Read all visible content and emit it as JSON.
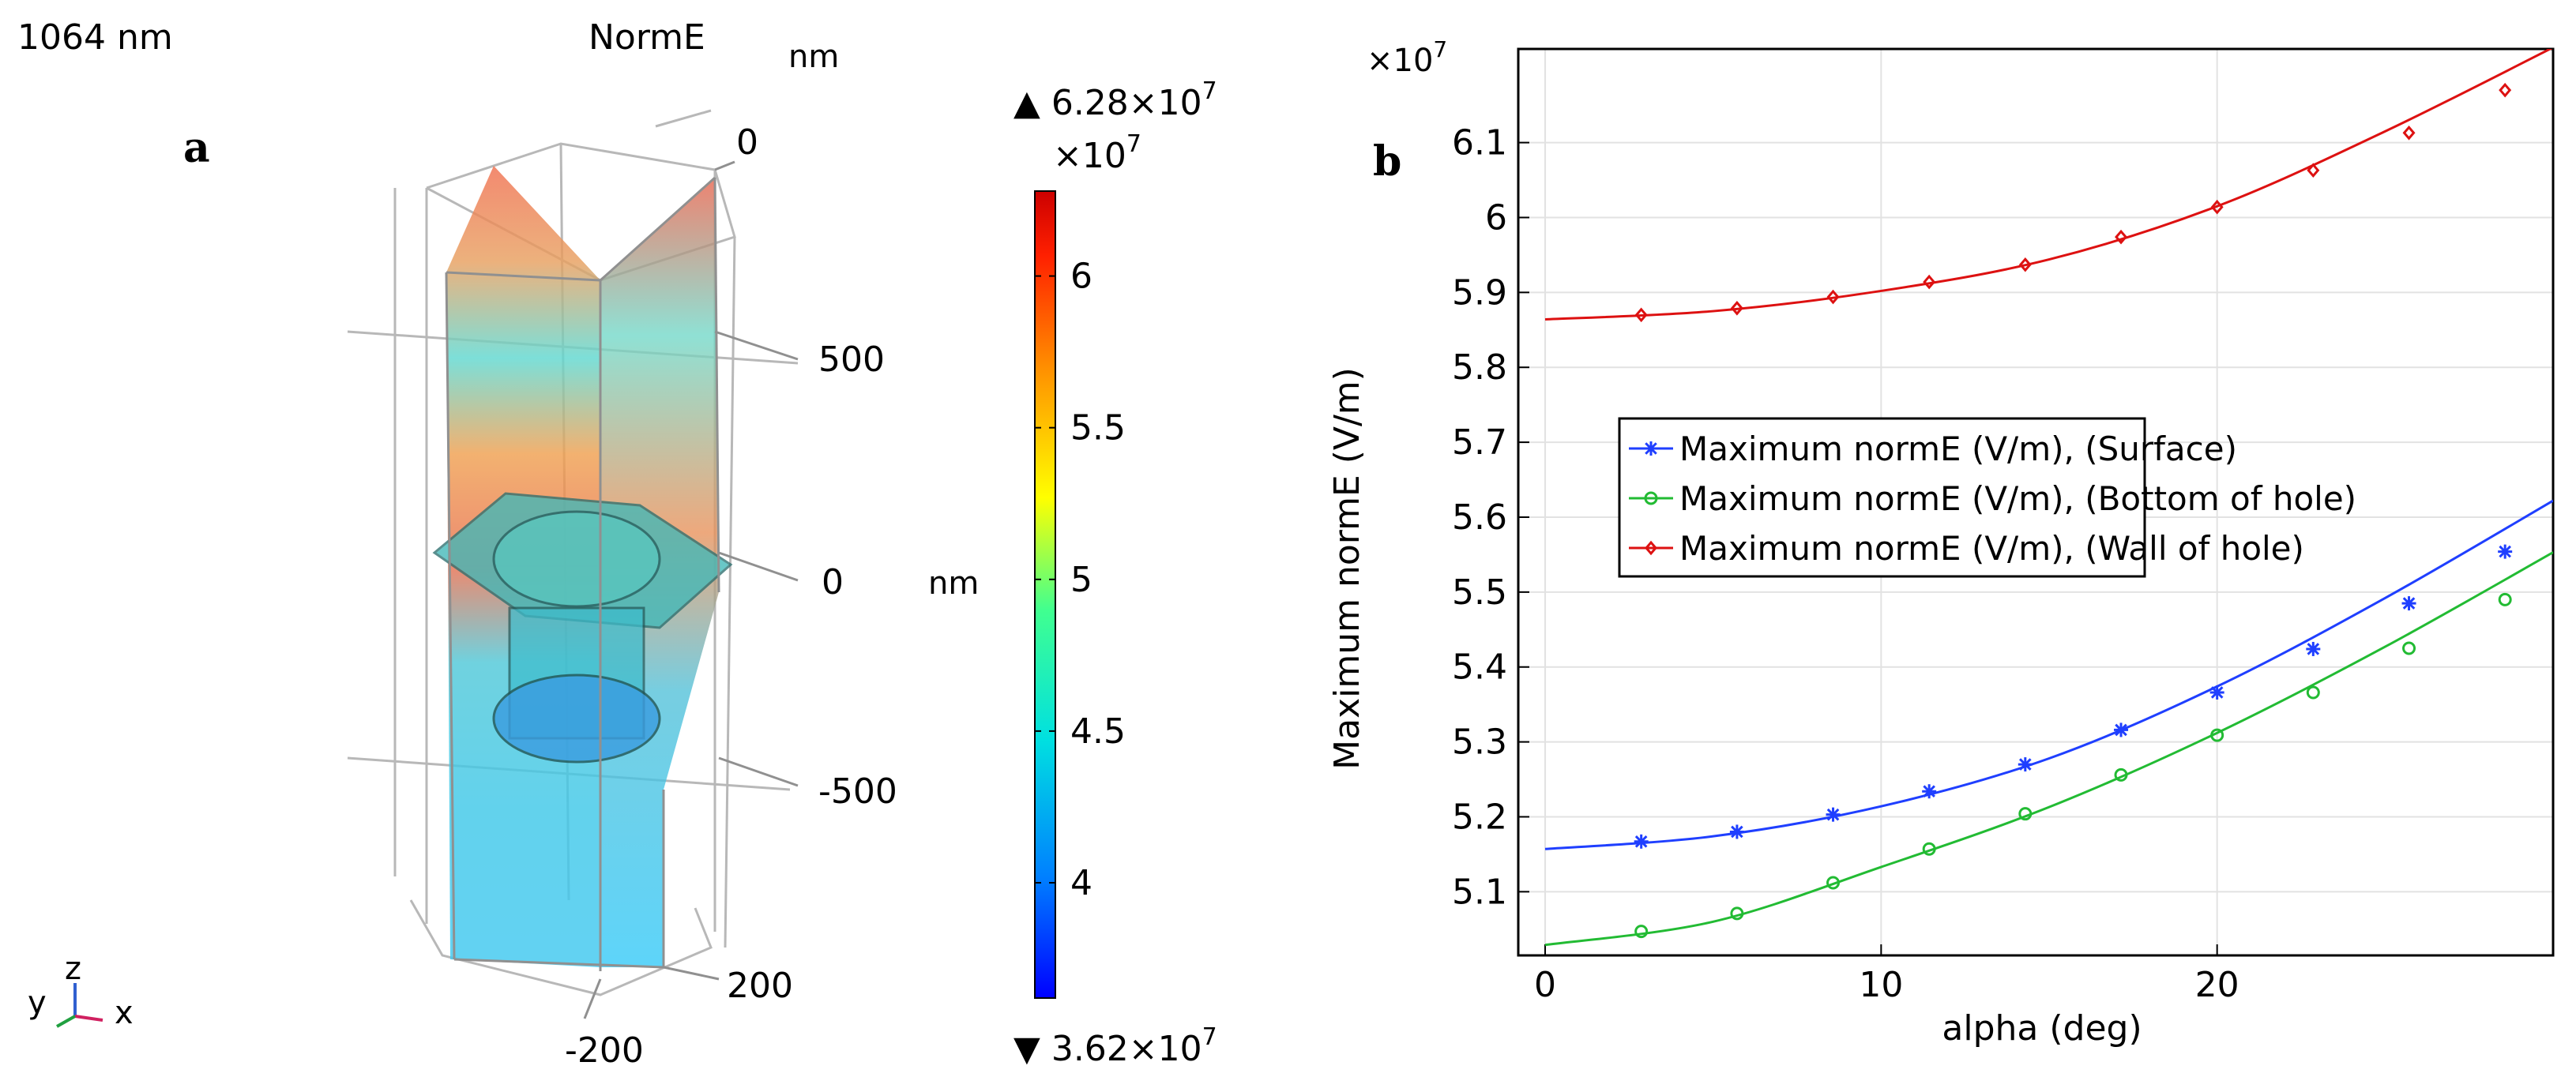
{
  "panel_a": {
    "panel_letter": "a",
    "wavelength_label": "1064 nm",
    "plot_title": "NormE",
    "unit_top": "nm",
    "unit_side": "nm",
    "axis_ticks": [
      "0",
      "500",
      "0",
      "-500",
      "200",
      "-200"
    ],
    "axis_triad": {
      "y": "y",
      "z": "z",
      "x": "x"
    },
    "colorbar": {
      "max_label": "▲ 6.28×10",
      "max_exp": "7",
      "min_label": "▼ 3.62×10",
      "min_exp": "7",
      "multiplier": "×10",
      "multiplier_exp": "7",
      "range": [
        3.62,
        6.28
      ],
      "ticks": [
        {
          "value": 6.0,
          "label": "6"
        },
        {
          "value": 5.5,
          "label": "5.5"
        },
        {
          "value": 5.0,
          "label": "5"
        },
        {
          "value": 4.5,
          "label": "4.5"
        },
        {
          "value": 4.0,
          "label": "4"
        }
      ],
      "colors": [
        "#0000ff",
        "#0080ff",
        "#00e0e0",
        "#40ff90",
        "#ffff00",
        "#ff9000",
        "#ff2000",
        "#cc0000"
      ]
    }
  },
  "chart_data": {
    "type": "line",
    "panel_letter": "b",
    "title": "",
    "xlabel": "alpha (deg)",
    "ylabel": "Maximum normE (V/m)",
    "y_multiplier": "×10",
    "y_multiplier_exp": "7",
    "xlim": [
      -0.8,
      30
    ],
    "ylim": [
      5.015,
      6.225
    ],
    "x_ticks": [
      0,
      10,
      20
    ],
    "y_ticks": [
      5.1,
      5.2,
      5.3,
      5.4,
      5.5,
      5.6,
      5.7,
      5.8,
      5.9,
      6.0,
      6.1
    ],
    "y_tick_labels": [
      "5.1",
      "5.2",
      "5.3",
      "5.4",
      "5.5",
      "5.6",
      "5.7",
      "5.8",
      "5.9",
      "6",
      "6.1"
    ],
    "grid": true,
    "legend_position": "center",
    "series": [
      {
        "name": "Maximum normE (V/m), (Surface)",
        "color": "#1f3fff",
        "marker": "asterisk",
        "x": [
          0,
          5,
          10,
          15,
          20,
          25,
          30
        ],
        "y": [
          5.157,
          5.174,
          5.214,
          5.278,
          5.374,
          5.492,
          5.622
        ],
        "marker_x": [
          2.86,
          5.71,
          8.57,
          11.43,
          14.29,
          17.14,
          20.0,
          22.86,
          25.71,
          28.57
        ],
        "marker_y": [
          5.167,
          5.18,
          5.203,
          5.234,
          5.27,
          5.316,
          5.366,
          5.424,
          5.485,
          5.554
        ]
      },
      {
        "name": "Maximum normE (V/m), (Bottom of hole)",
        "color": "#22bb33",
        "marker": "circle",
        "x": [
          0,
          5,
          10,
          15,
          20,
          25,
          30
        ],
        "y": [
          5.029,
          5.06,
          5.133,
          5.213,
          5.312,
          5.427,
          5.553
        ],
        "marker_x": [
          2.86,
          5.71,
          8.57,
          11.43,
          14.29,
          17.14,
          20.0,
          22.86,
          25.71,
          28.57
        ],
        "marker_y": [
          5.047,
          5.071,
          5.112,
          5.157,
          5.204,
          5.256,
          5.309,
          5.366,
          5.425,
          5.49
        ]
      },
      {
        "name": "Maximum normE (V/m), (Wall of hole)",
        "color": "#dd1111",
        "marker": "diamond",
        "x": [
          0,
          5,
          10,
          15,
          20,
          25,
          30
        ],
        "y": [
          5.864,
          5.875,
          5.902,
          5.944,
          6.015,
          6.115,
          6.227
        ],
        "marker_x": [
          2.86,
          5.71,
          8.57,
          11.43,
          14.29,
          17.14,
          20.0,
          22.86,
          25.71,
          28.57
        ],
        "marker_y": [
          5.87,
          5.879,
          5.894,
          5.914,
          5.937,
          5.974,
          6.014,
          6.063,
          6.113,
          6.17
        ]
      }
    ]
  }
}
